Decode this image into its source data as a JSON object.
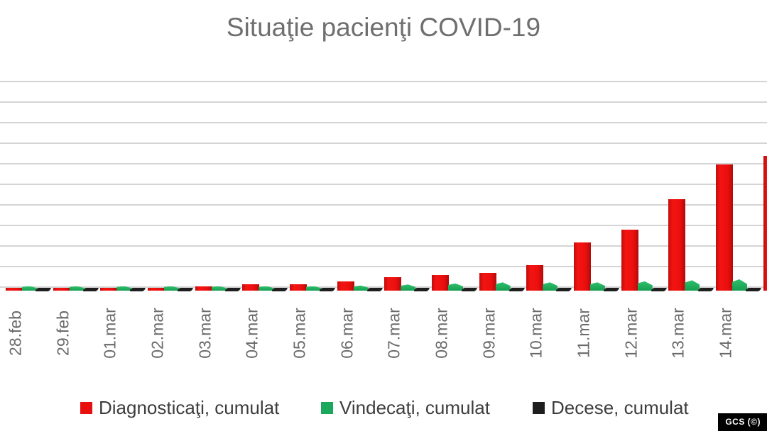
{
  "title": "Situaţie pacienţi COVID-19",
  "watermark": "GCS (©)",
  "colors": {
    "diagnosed_red": "#e8100f",
    "recovered_green": "#1ca85c",
    "deaths_black": "#1e1e1e",
    "gridline_gray": "#d4d4d4",
    "title_gray": "#6f6f6f",
    "axis_label_gray": "#6a6a6a",
    "legend_text": "#3d3d3d"
  },
  "chart_data": {
    "type": "bar",
    "title": "Situaţie pacienţi COVID-19",
    "categories": [
      "28.feb",
      "29.feb",
      "01.mar",
      "02.mar",
      "03.mar",
      "04.mar",
      "05.mar",
      "06.mar",
      "07.mar",
      "08.mar",
      "09.mar",
      "10.mar",
      "11.mar",
      "12.mar",
      "13.mar",
      "14.mar",
      ""
    ],
    "series": [
      {
        "name": "Diagnosticaţi, cumulat",
        "color": "#e8100f",
        "values": [
          3,
          3,
          3,
          3,
          4,
          6,
          6,
          9,
          13,
          15,
          17,
          25,
          47,
          59,
          89,
          123,
          131
        ]
      },
      {
        "name": "Vindecaţi, cumulat",
        "color": "#1ca85c",
        "values": [
          1,
          1,
          1,
          1,
          1,
          2,
          2,
          3,
          4,
          5,
          6,
          6,
          6,
          7,
          8,
          9,
          9
        ]
      },
      {
        "name": "Decese, cumulat",
        "color": "#1e1e1e",
        "values": [
          0,
          0,
          0,
          0,
          0,
          0,
          0,
          0,
          0,
          0,
          0,
          0,
          0,
          0,
          0,
          0,
          0
        ]
      }
    ],
    "xlabel": "",
    "ylabel": "",
    "ylim": [
      0,
      200
    ],
    "gridline_step": 20,
    "grid": true,
    "y_axis_labels_visible": false,
    "legend_position": "bottom",
    "last_bar_clipped_at_right_edge": true,
    "x_labels_rotated_degrees": 90
  }
}
